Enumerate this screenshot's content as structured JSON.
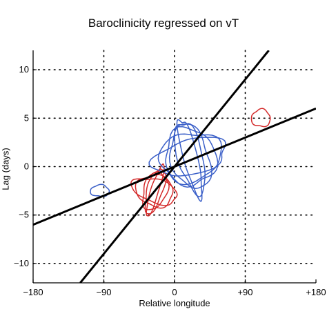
{
  "chart_data": {
    "type": "contour",
    "title": "Baroclinicity regressed on vT",
    "xlabel": "Relative longitude",
    "ylabel": "Lag (days)",
    "xlim": [
      -180,
      180
    ],
    "ylim": [
      12,
      -12
    ],
    "x_ticks": [
      -180,
      -90,
      0,
      90,
      180
    ],
    "x_tick_labels": [
      "−180",
      "−90",
      "0",
      "+90",
      "+180"
    ],
    "y_ticks": [
      -10,
      -5,
      0,
      5,
      10
    ],
    "y_tick_labels": [
      "−10",
      "−5",
      "0",
      "5",
      "10"
    ],
    "grid": "dotted",
    "colors": {
      "positive": "#d42a2a",
      "negative": "#3a5fc8",
      "lines": "#000000"
    },
    "fit_lines": [
      {
        "points": [
          [
            -120,
            -12
          ],
          [
            120,
            12
          ]
        ]
      },
      {
        "points": [
          [
            -180,
            -6
          ],
          [
            180,
            6
          ]
        ]
      }
    ],
    "contour_groups": [
      {
        "sign": "positive",
        "center": [
          -25,
          -2.5
        ],
        "semi_axes": [
          [
            30,
            1.2
          ],
          [
            24,
            1.6
          ],
          [
            15,
            2.0
          ],
          [
            10,
            2.4
          ],
          [
            5,
            2.8
          ]
        ],
        "rotation": 0.3
      },
      {
        "sign": "negative",
        "center": [
          20,
          1.0
        ],
        "semi_axes": [
          [
            48,
            1.8
          ],
          [
            40,
            2.5
          ],
          [
            32,
            3.0
          ],
          [
            24,
            3.4
          ],
          [
            16,
            3.8
          ],
          [
            9,
            4.2
          ]
        ],
        "rotation": -0.25
      },
      {
        "sign": "positive",
        "center": [
          110,
          5.0
        ],
        "semi_axes": [
          [
            12,
            0.9
          ]
        ],
        "rotation": 0.0
      },
      {
        "sign": "negative",
        "center": [
          -95,
          -2.5
        ],
        "semi_axes": [
          [
            12,
            0.6
          ]
        ],
        "rotation": 0.0
      }
    ]
  }
}
